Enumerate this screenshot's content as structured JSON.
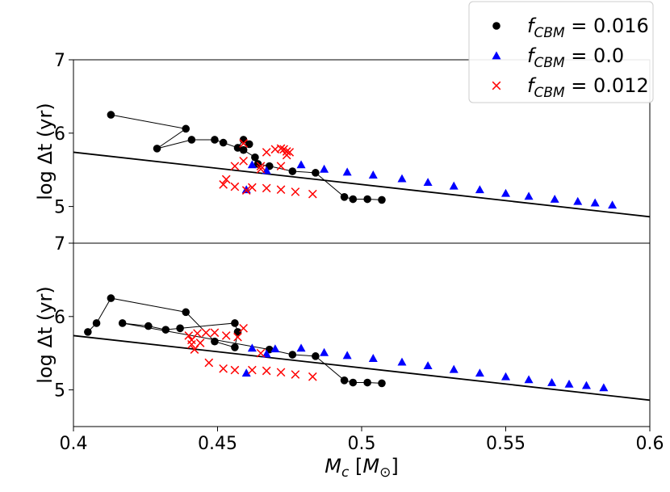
{
  "chart_data": {
    "type": "scatter",
    "layout": "two stacked panels sharing the x axis",
    "xlabel": "M_c [M_⊙]",
    "xlim": [
      0.4,
      0.6
    ],
    "x_ticks": [
      "0.4",
      "0.45",
      "0.5",
      "0.55",
      "0.6"
    ],
    "legend": {
      "placement": "top-right",
      "entries": [
        {
          "series": "fcbm016",
          "label": "f_CBM = 0.016",
          "symbol": "●",
          "color": "#000000"
        },
        {
          "series": "fcbm0",
          "label": "f_CBM = 0.0",
          "symbol": "▲",
          "color": "#0000ff"
        },
        {
          "series": "fcbm012",
          "label": "f_CBM = 0.012",
          "symbol": "×",
          "color": "#ff0000"
        }
      ]
    },
    "panels": [
      {
        "ylabel": "log Δt (yr)",
        "ylim": [
          4.5,
          7
        ],
        "y_ticks": [
          "5",
          "6",
          "7"
        ],
        "fit_line": {
          "x": [
            0.4,
            0.6
          ],
          "y": [
            5.74,
            4.86
          ]
        },
        "series": [
          {
            "name": "f_CBM = 0.016",
            "marker": "circle",
            "color": "#000000",
            "connected": true,
            "points": [
              [
                0.413,
                6.25
              ],
              [
                0.439,
                6.06
              ],
              [
                0.429,
                5.79
              ],
              [
                0.441,
                5.91
              ],
              [
                0.449,
                5.91
              ],
              [
                0.452,
                5.87
              ],
              [
                0.457,
                5.8
              ],
              [
                0.459,
                5.91
              ],
              [
                0.461,
                5.85
              ],
              [
                0.459,
                5.77
              ],
              [
                0.463,
                5.67
              ],
              [
                0.464,
                5.58
              ],
              [
                0.468,
                5.55
              ],
              [
                0.476,
                5.48
              ],
              [
                0.484,
                5.46
              ],
              [
                0.494,
                5.13
              ],
              [
                0.497,
                5.1
              ],
              [
                0.502,
                5.1
              ],
              [
                0.507,
                5.09
              ]
            ]
          },
          {
            "name": "f_CBM = 0.0",
            "marker": "triangle",
            "color": "#0000ff",
            "connected": false,
            "points": [
              [
                0.46,
                5.23
              ],
              [
                0.462,
                5.57
              ],
              [
                0.467,
                5.49
              ],
              [
                0.479,
                5.57
              ],
              [
                0.487,
                5.51
              ],
              [
                0.495,
                5.47
              ],
              [
                0.504,
                5.43
              ],
              [
                0.514,
                5.38
              ],
              [
                0.523,
                5.33
              ],
              [
                0.532,
                5.28
              ],
              [
                0.541,
                5.23
              ],
              [
                0.55,
                5.18
              ],
              [
                0.558,
                5.14
              ],
              [
                0.567,
                5.1
              ],
              [
                0.575,
                5.07
              ],
              [
                0.581,
                5.05
              ],
              [
                0.587,
                5.02
              ]
            ]
          },
          {
            "name": "f_CBM = 0.012",
            "marker": "x",
            "color": "#ff0000",
            "connected": false,
            "points": [
              [
                0.452,
                5.3
              ],
              [
                0.453,
                5.37
              ],
              [
                0.456,
                5.27
              ],
              [
                0.456,
                5.55
              ],
              [
                0.459,
                5.62
              ],
              [
                0.459,
                5.86
              ],
              [
                0.46,
                5.22
              ],
              [
                0.462,
                5.26
              ],
              [
                0.465,
                5.51
              ],
              [
                0.465,
                5.55
              ],
              [
                0.467,
                5.25
              ],
              [
                0.467,
                5.74
              ],
              [
                0.47,
                5.78
              ],
              [
                0.472,
                5.23
              ],
              [
                0.472,
                5.55
              ],
              [
                0.472,
                5.79
              ],
              [
                0.473,
                5.78
              ],
              [
                0.474,
                5.75
              ],
              [
                0.474,
                5.7
              ],
              [
                0.475,
                5.74
              ],
              [
                0.477,
                5.2
              ],
              [
                0.483,
                5.17
              ]
            ]
          }
        ]
      },
      {
        "ylabel": "log Δt (yr)",
        "ylim": [
          4.5,
          7
        ],
        "y_ticks": [
          "5",
          "6",
          "7"
        ],
        "fit_line": {
          "x": [
            0.4,
            0.6
          ],
          "y": [
            5.74,
            4.86
          ]
        },
        "series": [
          {
            "name": "f_CBM = 0.016",
            "marker": "circle",
            "color": "#000000",
            "connected": true,
            "points": [
              [
                0.405,
                5.79
              ],
              [
                0.408,
                5.91
              ],
              [
                0.413,
                6.25
              ],
              [
                0.439,
                6.06
              ],
              [
                0.449,
                5.66
              ],
              [
                0.456,
                5.58
              ],
              [
                0.457,
                5.79
              ],
              [
                0.456,
                5.91
              ],
              [
                0.437,
                5.84
              ],
              [
                0.432,
                5.82
              ],
              [
                0.426,
                5.87
              ],
              [
                0.417,
                5.91
              ],
              [
                0.468,
                5.55
              ],
              [
                0.476,
                5.48
              ],
              [
                0.484,
                5.46
              ],
              [
                0.494,
                5.13
              ],
              [
                0.497,
                5.1
              ],
              [
                0.502,
                5.1
              ],
              [
                0.507,
                5.09
              ]
            ]
          },
          {
            "name": "f_CBM = 0.0",
            "marker": "triangle",
            "color": "#0000ff",
            "connected": false,
            "points": [
              [
                0.46,
                5.23
              ],
              [
                0.462,
                5.57
              ],
              [
                0.467,
                5.49
              ],
              [
                0.47,
                5.56
              ],
              [
                0.479,
                5.57
              ],
              [
                0.487,
                5.51
              ],
              [
                0.495,
                5.47
              ],
              [
                0.504,
                5.43
              ],
              [
                0.514,
                5.38
              ],
              [
                0.523,
                5.33
              ],
              [
                0.532,
                5.28
              ],
              [
                0.541,
                5.23
              ],
              [
                0.55,
                5.18
              ],
              [
                0.558,
                5.14
              ],
              [
                0.566,
                5.1
              ],
              [
                0.572,
                5.08
              ],
              [
                0.578,
                5.06
              ],
              [
                0.584,
                5.03
              ]
            ]
          },
          {
            "name": "f_CBM = 0.012",
            "marker": "x",
            "color": "#ff0000",
            "connected": false,
            "points": [
              [
                0.44,
                5.74
              ],
              [
                0.441,
                5.68
              ],
              [
                0.441,
                5.62
              ],
              [
                0.442,
                5.55
              ],
              [
                0.443,
                5.77
              ],
              [
                0.444,
                5.64
              ],
              [
                0.446,
                5.78
              ],
              [
                0.447,
                5.37
              ],
              [
                0.449,
                5.78
              ],
              [
                0.452,
                5.29
              ],
              [
                0.453,
                5.74
              ],
              [
                0.456,
                5.27
              ],
              [
                0.457,
                5.72
              ],
              [
                0.459,
                5.84
              ],
              [
                0.462,
                5.27
              ],
              [
                0.465,
                5.5
              ],
              [
                0.467,
                5.26
              ],
              [
                0.472,
                5.24
              ],
              [
                0.477,
                5.21
              ],
              [
                0.483,
                5.18
              ]
            ]
          }
        ]
      }
    ]
  }
}
